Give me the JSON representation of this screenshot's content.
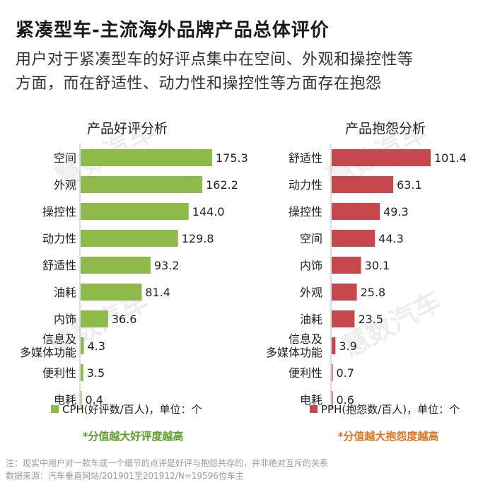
{
  "title": "紧凑型车-主流海外品牌产品总体评价",
  "subtitle": [
    "用户对于紧凑型车的好评点集中在空间、外观和操控性等",
    "方面，而在舒适性、动力性和操控性等方面存在抱怨"
  ],
  "watermark": "慧数汽车",
  "chart_data": [
    {
      "type": "bar",
      "orientation": "horizontal",
      "title": "产品好评分析",
      "categories": [
        "空间",
        "外观",
        "操控性",
        "动力性",
        "舒适性",
        "油耗",
        "内饰",
        "信息及\n多媒体功能",
        "便利性",
        "电耗"
      ],
      "values": [
        175.3,
        162.2,
        144.0,
        129.8,
        93.2,
        81.4,
        36.6,
        4.3,
        3.5,
        0.4
      ],
      "value_labels": [
        "175.3",
        "162.2",
        "144.0",
        "129.8",
        "93.2",
        "81.4",
        "36.6",
        "4.3",
        "3.5",
        "0.4"
      ],
      "color": "#8dbb49",
      "legend": "CPH(好评数/百人)，单位：个",
      "note": "*分值越大好评度越高",
      "note_color": "#5a9e2a"
    },
    {
      "type": "bar",
      "orientation": "horizontal",
      "title": "产品抱怨分析",
      "categories": [
        "舒适性",
        "动力性",
        "操控性",
        "空间",
        "内饰",
        "外观",
        "油耗",
        "信息及\n多媒体功能",
        "便利性",
        "电耗"
      ],
      "values": [
        101.4,
        63.1,
        49.3,
        44.3,
        30.1,
        25.8,
        23.5,
        3.9,
        0.7,
        0.6
      ],
      "value_labels": [
        "101.4",
        "63.1",
        "49.3",
        "44.3",
        "30.1",
        "25.8",
        "23.5",
        "3.9",
        "0.7",
        "0.6"
      ],
      "color": "#c6484c",
      "legend": "PPH(抱怨数/百人)，单位：个",
      "note": "*分值越大抱怨度越高",
      "note_color": "#e8701e"
    }
  ],
  "footnote": "注：现实中用户对一款车或一个细节的点评是好评与抱怨共存的，并非绝对互斥的关系",
  "datasource": "数据来源：汽车垂直网站/201901至201912/N=19596位车主"
}
